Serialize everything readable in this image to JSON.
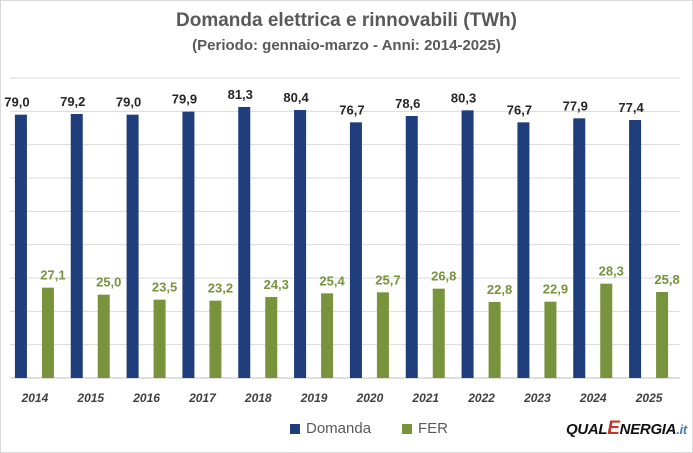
{
  "chart_data": {
    "type": "bar",
    "title": "Domanda elettrica e rinnovabili (TWh)",
    "subtitle": "(Periodo: gennaio-marzo - Anni: 2014-2025)",
    "categories": [
      "2014",
      "2015",
      "2016",
      "2017",
      "2018",
      "2019",
      "2020",
      "2021",
      "2022",
      "2023",
      "2024",
      "2025"
    ],
    "series": [
      {
        "name": "Domanda",
        "color": "#1f3d7a",
        "values": [
          79.0,
          79.2,
          79.0,
          79.9,
          81.3,
          80.4,
          76.7,
          78.6,
          80.3,
          76.7,
          77.9,
          77.4
        ],
        "labels": [
          "79,0",
          "79,2",
          "79,0",
          "79,9",
          "81,3",
          "80,4",
          "76,7",
          "78,6",
          "80,3",
          "76,7",
          "77,9",
          "77,4"
        ]
      },
      {
        "name": "FER",
        "color": "#77933c",
        "values": [
          27.1,
          25.0,
          23.5,
          23.2,
          24.3,
          25.4,
          25.7,
          26.8,
          22.8,
          22.9,
          28.3,
          25.8
        ],
        "labels": [
          "27,1",
          "25,0",
          "23,5",
          "23,2",
          "24,3",
          "25,4",
          "25,7",
          "26,8",
          "22,8",
          "22,9",
          "28,3",
          "25,8"
        ]
      }
    ],
    "ylim": [
      0,
      90
    ],
    "grid": true,
    "legend": "bottom"
  },
  "logo": {
    "part1": "QUAL",
    "part2": "E",
    "part3": "NERGIA",
    "part4": ".it"
  }
}
